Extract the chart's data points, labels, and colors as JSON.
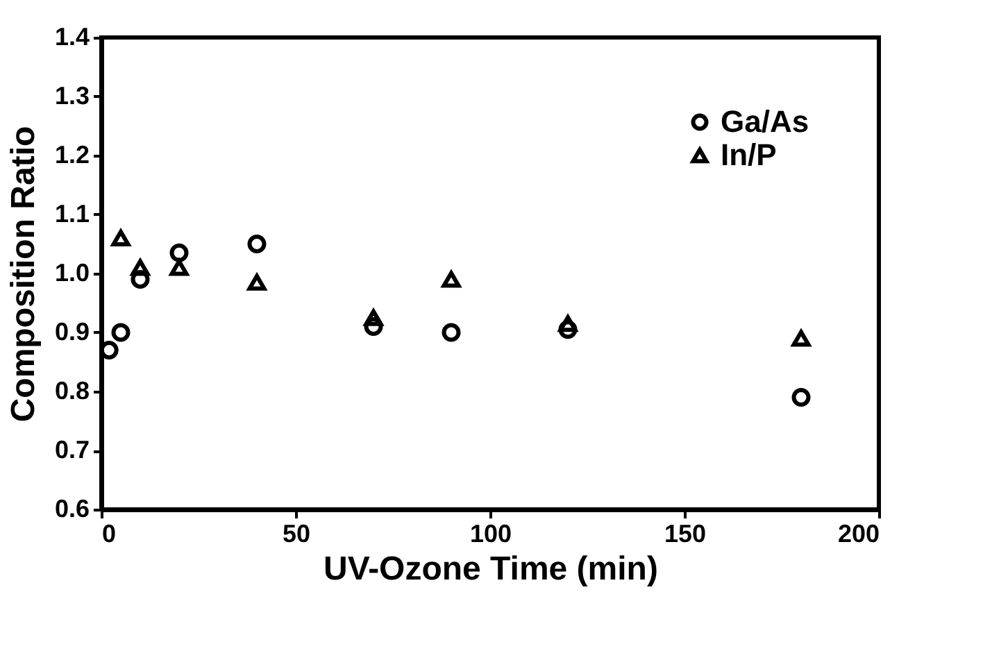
{
  "chart_data": {
    "type": "scatter",
    "xlabel": "UV-Ozone Time (min)",
    "ylabel": "Composition Ratio",
    "xlim": [
      0,
      200
    ],
    "xticks": [
      0,
      50,
      100,
      150,
      200
    ],
    "ylim": [
      0.6,
      1.4
    ],
    "yticks": [
      0.6,
      0.7,
      0.8,
      0.9,
      {
        "value": 1,
        "label": "1.0"
      },
      1.1,
      1.2,
      1.3,
      1.4
    ],
    "legend": "top right",
    "grid": false,
    "series": [
      {
        "name": "Ga/As",
        "color": "#000000",
        "marker": "circle",
        "x": [
          2,
          5,
          10,
          20,
          40,
          70,
          90,
          120,
          180
        ],
        "values": [
          0.87,
          0.9,
          0.99,
          1.035,
          1.05,
          0.91,
          0.9,
          0.905,
          0.79
        ]
      },
      {
        "name": "In/P",
        "color": "#000000",
        "marker": "triangle",
        "x": [
          5,
          10,
          20,
          40,
          70,
          90,
          120,
          180
        ],
        "values": [
          1.06,
          1.01,
          1.01,
          0.985,
          0.925,
          0.99,
          0.915,
          0.89
        ]
      }
    ]
  }
}
